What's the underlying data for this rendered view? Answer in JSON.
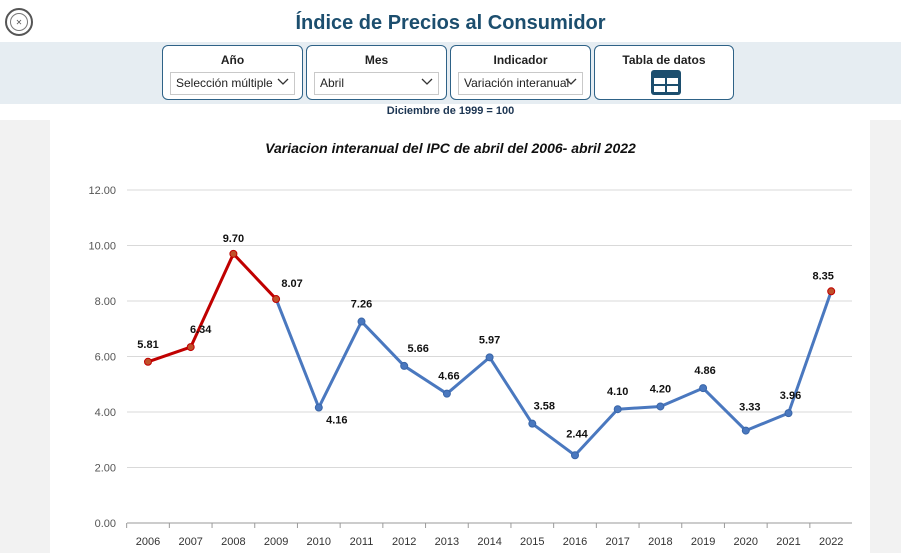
{
  "header": {
    "title": "Índice de Precios al Consumidor",
    "logo_icon": "seal-icon"
  },
  "filters": {
    "anio": {
      "label": "Año",
      "value": "Selección múltiple"
    },
    "mes": {
      "label": "Mes",
      "value": "Abril"
    },
    "indicador": {
      "label": "Indicador",
      "value": "Variación interanual"
    },
    "tabla": {
      "label": "Tabla de datos",
      "icon": "table-icon"
    }
  },
  "base_note": "Diciembre de 1999 = 100",
  "colors": {
    "title": "#1c4e6e",
    "blue": "#4a78bf",
    "red": "#c00000",
    "red_dot": "#c0502a",
    "border": "#2e6287",
    "band": "#e6edf2"
  },
  "chart_data": {
    "type": "line",
    "title": "Variacion interanual del IPC de abril del 2006- abril 2022",
    "categories": [
      "2006",
      "2007",
      "2008",
      "2009",
      "2010",
      "2011",
      "2012",
      "2013",
      "2014",
      "2015",
      "2016",
      "2017",
      "2018",
      "2019",
      "2020",
      "2021",
      "2022"
    ],
    "values": [
      5.81,
      6.34,
      9.7,
      8.07,
      4.16,
      7.26,
      5.66,
      4.66,
      5.97,
      3.58,
      2.44,
      4.1,
      4.2,
      4.86,
      3.33,
      3.96,
      8.35
    ],
    "labels": [
      "5.81",
      "6.34",
      "9.70",
      "8.07",
      "4.16",
      "7.26",
      "5.66",
      "4.66",
      "5.97",
      "3.58",
      "2.44",
      "4.10",
      "4.20",
      "4.86",
      "3.33",
      "3.96",
      "8.35"
    ],
    "highlighted": [
      true,
      true,
      true,
      true,
      false,
      false,
      false,
      false,
      false,
      false,
      false,
      false,
      false,
      false,
      false,
      false,
      true
    ],
    "yticks": [
      "0.00",
      "2.00",
      "4.00",
      "6.00",
      "8.00",
      "10.00",
      "12.00"
    ],
    "ylim": [
      0,
      12
    ],
    "grid": true
  }
}
